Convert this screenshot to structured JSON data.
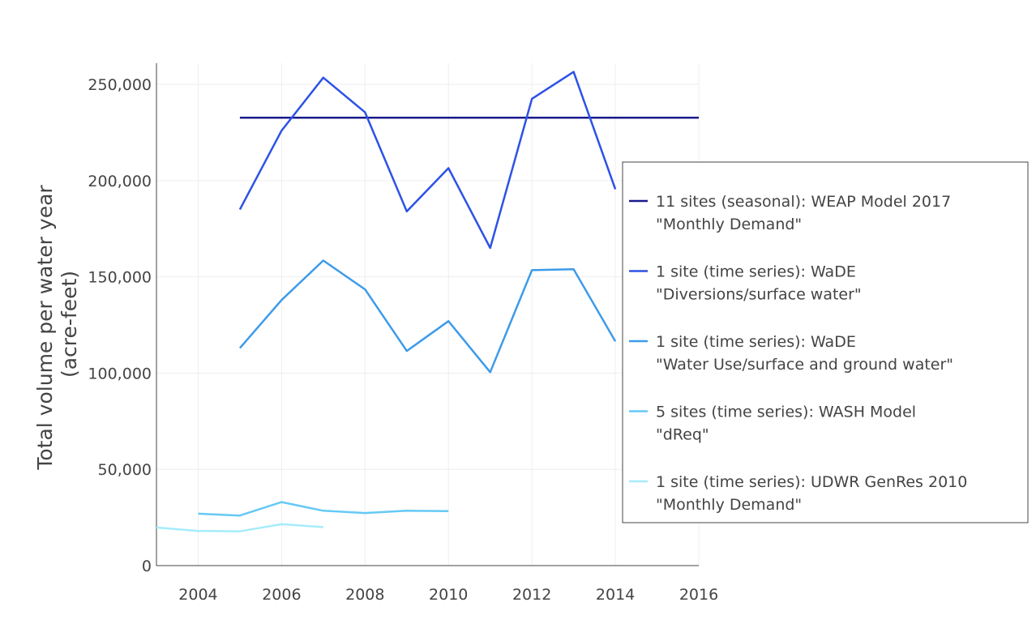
{
  "chart_data": {
    "type": "line",
    "title": "",
    "xlabel": "",
    "ylabel": [
      "Total volume per water year",
      "(acre-feet)"
    ],
    "xlim": [
      2003,
      2016
    ],
    "ylim": [
      0,
      261000
    ],
    "x_ticks": [
      2004,
      2006,
      2008,
      2010,
      2012,
      2014,
      2016
    ],
    "y_ticks": [
      0,
      50000,
      100000,
      150000,
      200000,
      250000
    ],
    "y_tick_labels": [
      "0",
      "50,000",
      "100,000",
      "150,000",
      "200,000",
      "250,000"
    ],
    "grid": true,
    "legend_position": "right",
    "series": [
      {
        "name": [
          "11 sites (seasonal): WEAP Model 2017",
          "\"Monthly Demand\""
        ],
        "color": "#1a1a8c",
        "x": [
          2005,
          2006,
          2007,
          2008,
          2009,
          2010,
          2011,
          2012,
          2013,
          2014,
          2015,
          2016
        ],
        "y": [
          232700,
          232700,
          232700,
          232700,
          232700,
          232700,
          232700,
          232700,
          232700,
          232700,
          232700,
          232700
        ]
      },
      {
        "name": [
          "1 site (time series): WaDE",
          "\"Diversions/surface water\""
        ],
        "color": "#2d52e6",
        "x": [
          2005,
          2006,
          2007,
          2008,
          2009,
          2010,
          2011,
          2012,
          2013,
          2014
        ],
        "y": [
          185000,
          226000,
          253500,
          235500,
          184000,
          206500,
          165000,
          242500,
          256500,
          195500
        ]
      },
      {
        "name": [
          "1 site (time series): WaDE",
          "\"Water Use/surface and ground water\""
        ],
        "color": "#3d9be9",
        "x": [
          2005,
          2006,
          2007,
          2008,
          2009,
          2010,
          2011,
          2012,
          2013,
          2014
        ],
        "y": [
          113000,
          138000,
          158500,
          143500,
          111500,
          127000,
          100500,
          153500,
          154000,
          116500
        ]
      },
      {
        "name": [
          "5 sites (time series): WASH Model",
          "\"dReq\""
        ],
        "color": "#66c9f5",
        "x": [
          2004,
          2005,
          2006,
          2007,
          2008,
          2009,
          2010
        ],
        "y": [
          27000,
          26000,
          33000,
          28500,
          27300,
          28500,
          28300
        ]
      },
      {
        "name": [
          "1 site (time series): UDWR GenRes 2010",
          "\"Monthly Demand\""
        ],
        "color": "#a6ecfb",
        "x": [
          2003,
          2004,
          2005,
          2006,
          2007
        ],
        "y": [
          19800,
          18000,
          17800,
          21500,
          20000
        ]
      }
    ]
  }
}
